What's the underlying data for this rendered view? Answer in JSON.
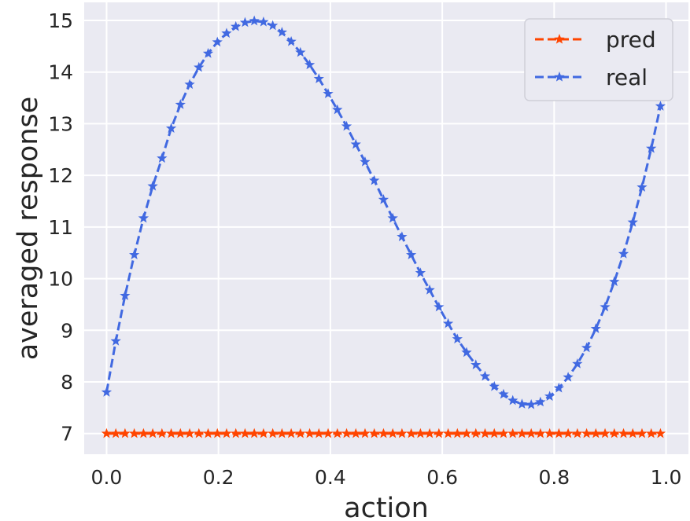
{
  "chart_data": {
    "type": "line",
    "xlabel": "action",
    "ylabel": "averaged response",
    "xlim": [
      -0.04,
      1.04
    ],
    "ylim": [
      6.6,
      15.35
    ],
    "xticks": [
      "0.0",
      "0.2",
      "0.4",
      "0.6",
      "0.8",
      "1.0"
    ],
    "yticks": [
      "7",
      "8",
      "9",
      "10",
      "11",
      "12",
      "13",
      "14",
      "15"
    ],
    "grid": true,
    "legend_position": "top-right",
    "x": [
      0.0,
      0.0165,
      0.033,
      0.0495,
      0.066,
      0.0825,
      0.099,
      0.1155,
      0.132,
      0.1485,
      0.165,
      0.1815,
      0.198,
      0.2145,
      0.231,
      0.2475,
      0.264,
      0.2805,
      0.297,
      0.3135,
      0.33,
      0.3465,
      0.363,
      0.3795,
      0.396,
      0.4125,
      0.429,
      0.4455,
      0.462,
      0.4785,
      0.495,
      0.5115,
      0.528,
      0.5445,
      0.561,
      0.5775,
      0.594,
      0.6105,
      0.627,
      0.6435,
      0.66,
      0.6765,
      0.693,
      0.7095,
      0.726,
      0.7425,
      0.759,
      0.7755,
      0.792,
      0.8085,
      0.825,
      0.8415,
      0.858,
      0.8745,
      0.891,
      0.9075,
      0.924,
      0.9405,
      0.957,
      0.9735,
      0.99
    ],
    "series": [
      {
        "name": "pred",
        "color": "#ff4500",
        "values": [
          7,
          7,
          7,
          7,
          7,
          7,
          7,
          7,
          7,
          7,
          7,
          7,
          7,
          7,
          7,
          7,
          7,
          7,
          7,
          7,
          7,
          7,
          7,
          7,
          7,
          7,
          7,
          7,
          7,
          7,
          7,
          7,
          7,
          7,
          7,
          7,
          7,
          7,
          7,
          7,
          7,
          7,
          7,
          7,
          7,
          7,
          7,
          7,
          7,
          7,
          7,
          7,
          7,
          7,
          7,
          7,
          7,
          7,
          7,
          7,
          7
        ]
      },
      {
        "name": "real",
        "color": "#4169e1",
        "values": [
          7.8,
          8.79,
          9.67,
          10.46,
          11.17,
          11.79,
          12.33,
          12.91,
          13.37,
          13.76,
          14.09,
          14.36,
          14.58,
          14.75,
          14.88,
          14.96,
          14.99,
          14.97,
          14.9,
          14.77,
          14.59,
          14.38,
          14.14,
          13.87,
          13.58,
          13.27,
          12.95,
          12.6,
          12.26,
          11.9,
          11.53,
          11.17,
          10.81,
          10.46,
          10.11,
          9.78,
          9.45,
          9.13,
          8.83,
          8.57,
          8.33,
          8.11,
          7.91,
          7.76,
          7.64,
          7.57,
          7.56,
          7.61,
          7.72,
          7.88,
          8.09,
          8.35,
          8.66,
          9.03,
          9.45,
          9.94,
          10.48,
          11.09,
          11.77,
          12.52,
          13.34
        ]
      }
    ]
  }
}
